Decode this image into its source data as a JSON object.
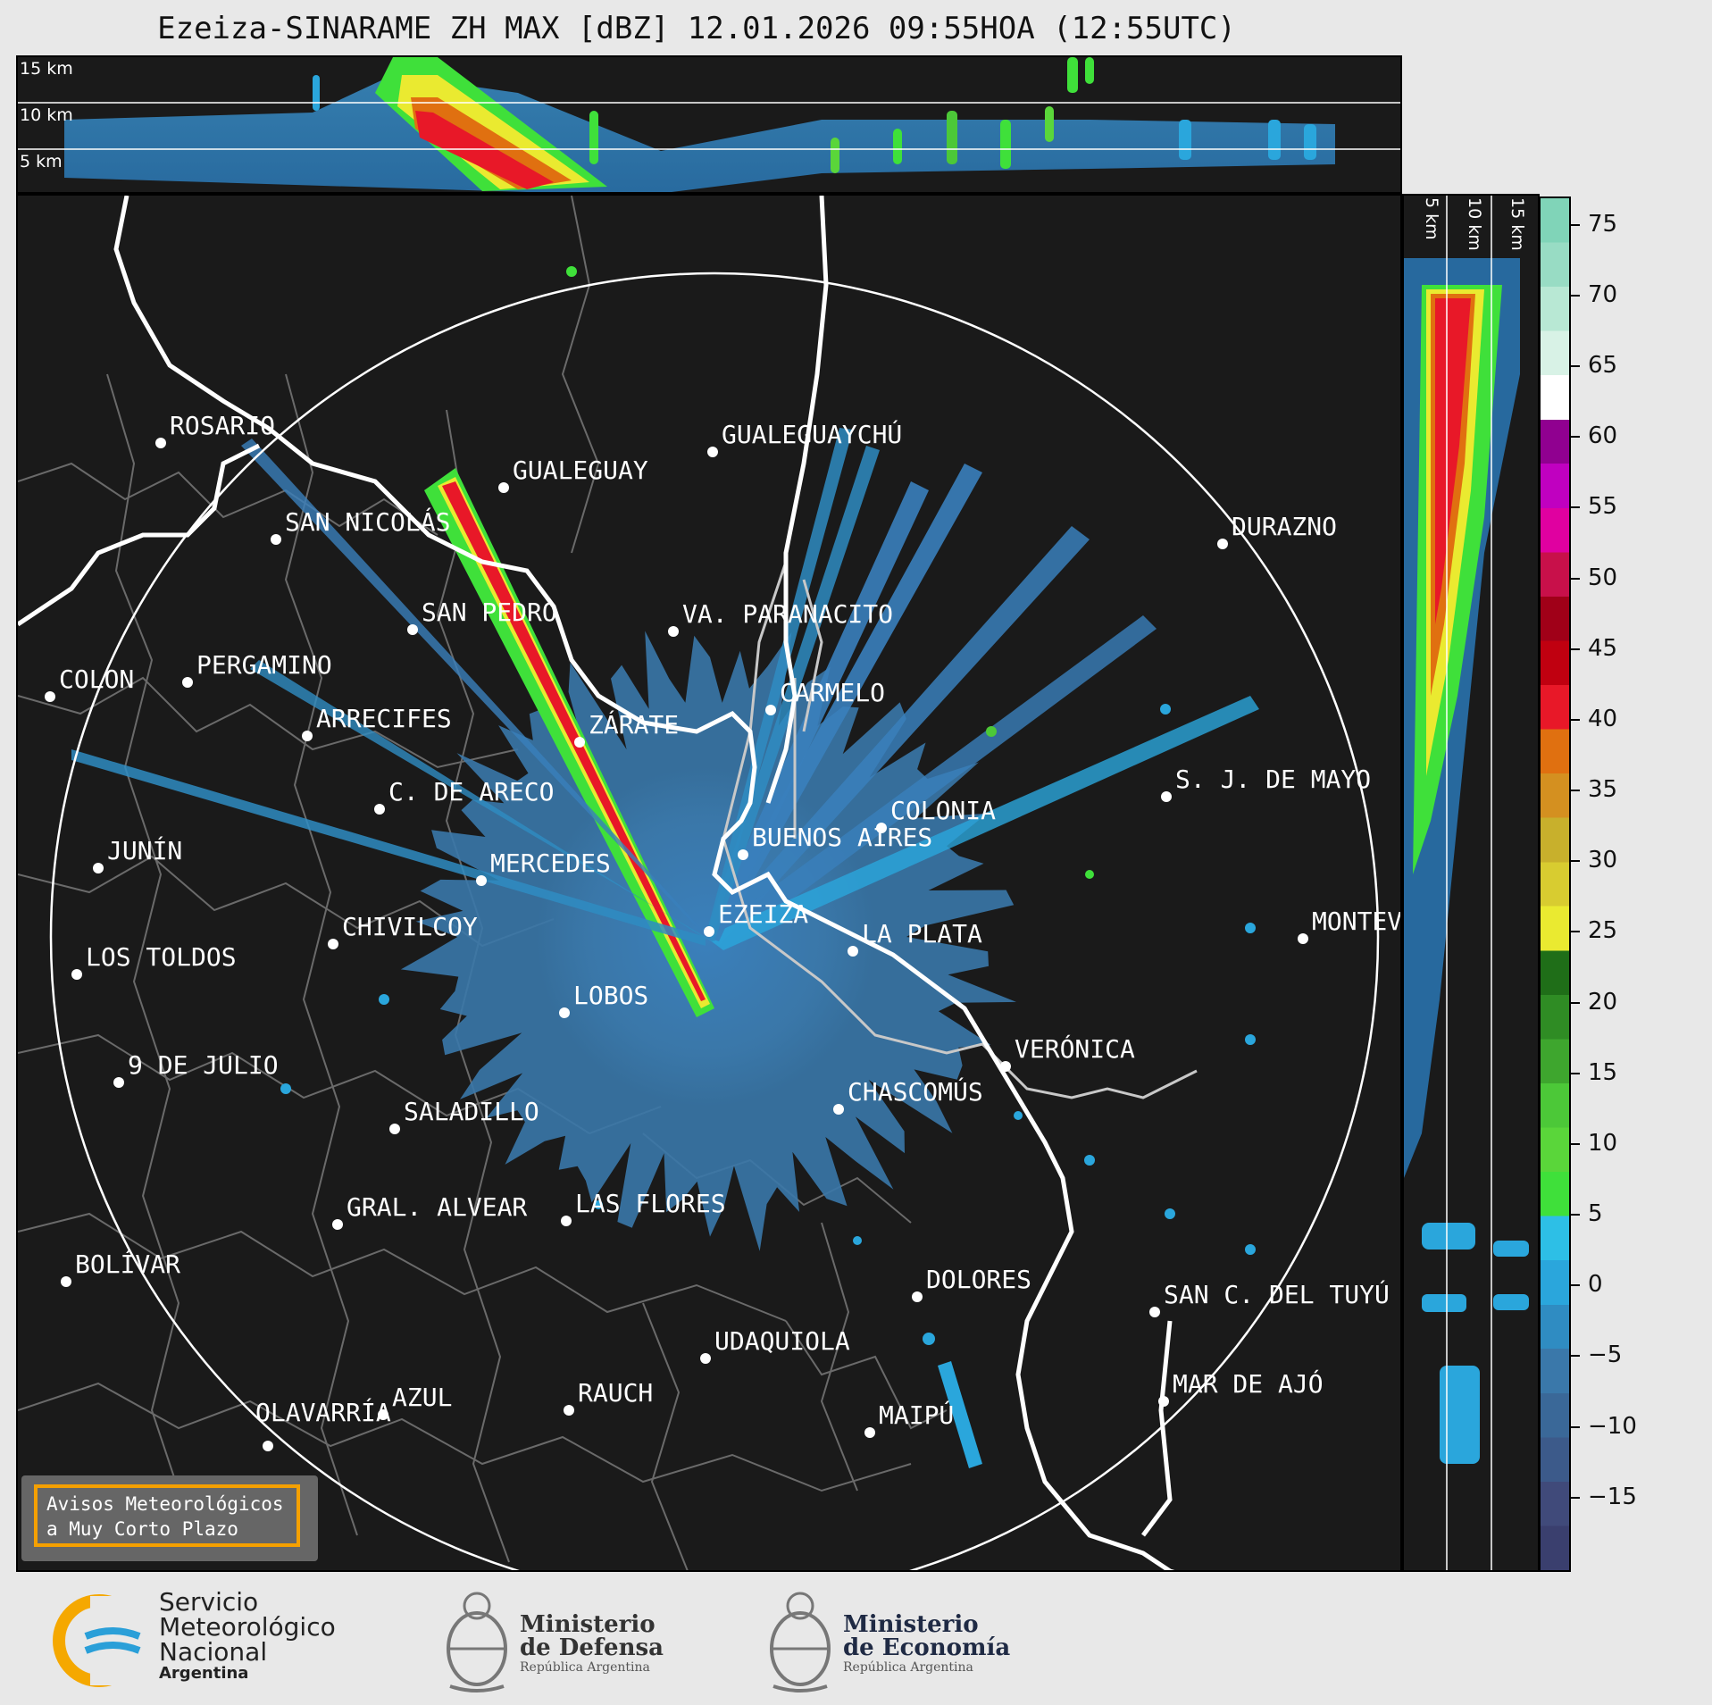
{
  "title": "Ezeiza-SINARAME ZH MAX [dBZ] 12.01.2026 09:55HOA (12:55UTC)",
  "top_panel": {
    "altitude_labels": [
      "15 km",
      "10 km",
      "5 km"
    ]
  },
  "right_panel": {
    "altitude_labels": [
      "5 km",
      "10 km",
      "15 km"
    ]
  },
  "colorbar": {
    "unit": "dBZ",
    "ticks": [
      75,
      70,
      65,
      60,
      55,
      50,
      45,
      40,
      35,
      30,
      25,
      20,
      15,
      10,
      5,
      0,
      -5,
      -10,
      -15
    ],
    "tick_labels": [
      "75",
      "70",
      "65",
      "60",
      "55",
      "50",
      "45",
      "40",
      "35",
      "30",
      "25",
      "20",
      "15",
      "10",
      "5",
      "0",
      "−5",
      "−10",
      "−15"
    ],
    "range": [
      -20,
      77
    ],
    "colors": [
      "#3a3f6e",
      "#404a7a",
      "#3c5a8a",
      "#3a6898",
      "#3a78aa",
      "#2f8cc2",
      "#2aa6dc",
      "#2dbfe6",
      "#3fe03a",
      "#5ad63a",
      "#4cc838",
      "#3ea62e",
      "#2f8c24",
      "#1f6e18",
      "#eaea30",
      "#d8cc30",
      "#c8b02c",
      "#d49020",
      "#e07010",
      "#e81828",
      "#c00010",
      "#a00018",
      "#c8104a",
      "#e000a0",
      "#c000c0",
      "#900090",
      "#ffffff",
      "#d8f2e6",
      "#b8e8d4",
      "#98dcc4",
      "#80d4b8"
    ]
  },
  "cities": [
    {
      "name": "ROSARIO"
    },
    {
      "name": "GUALEGUAYCHÚ"
    },
    {
      "name": "GUALEGUAY"
    },
    {
      "name": "SAN NICOLÁS"
    },
    {
      "name": "DURAZNO"
    },
    {
      "name": "SAN PEDRO"
    },
    {
      "name": "VA. PARANACITO"
    },
    {
      "name": "COLON"
    },
    {
      "name": "PERGAMINO"
    },
    {
      "name": "CARMELO"
    },
    {
      "name": "ARRECIFES"
    },
    {
      "name": "ZÁRATE"
    },
    {
      "name": "S. J. DE MAYO"
    },
    {
      "name": "C. DE ARECO"
    },
    {
      "name": "COLONIA"
    },
    {
      "name": "JUNÍN"
    },
    {
      "name": "BUENOS AIRES"
    },
    {
      "name": "MERCEDES"
    },
    {
      "name": "EZEIZA"
    },
    {
      "name": "MONTEV"
    },
    {
      "name": "CHIVILCOY"
    },
    {
      "name": "LA PLATA"
    },
    {
      "name": "LOS TOLDOS"
    },
    {
      "name": "LOBOS"
    },
    {
      "name": "VERÓNICA"
    },
    {
      "name": "9 DE JULIO"
    },
    {
      "name": "CHASCOMÚS"
    },
    {
      "name": "SALADILLO"
    },
    {
      "name": "GRAL. ALVEAR"
    },
    {
      "name": "LAS FLORES"
    },
    {
      "name": "BOLÍVAR"
    },
    {
      "name": "DOLORES"
    },
    {
      "name": "SAN C. DEL TUYÚ"
    },
    {
      "name": "UDAQUIOLA"
    },
    {
      "name": "AZUL"
    },
    {
      "name": "RAUCH"
    },
    {
      "name": "MAR DE AJÓ"
    },
    {
      "name": "MAIPÚ"
    },
    {
      "name": "OLAVARRÍA"
    }
  ],
  "badge": {
    "line1": "Avisos Meteorológicos",
    "line2": "a Muy Corto Plazo"
  },
  "footer": {
    "smn": {
      "line1": "Servicio",
      "line2": "Meteorológico",
      "line3": "Nacional",
      "line4": "Argentina"
    },
    "defensa": {
      "line1": "Ministerio",
      "line2": "de Defensa",
      "line3": "República Argentina"
    },
    "economia": {
      "line1": "Ministerio",
      "line2": "de Economía",
      "line3": "República Argentina"
    }
  },
  "icons": {
    "smn_logo": "smn-logo-icon",
    "defensa_seal": "national-seal-icon",
    "economia_seal": "national-seal-icon"
  }
}
